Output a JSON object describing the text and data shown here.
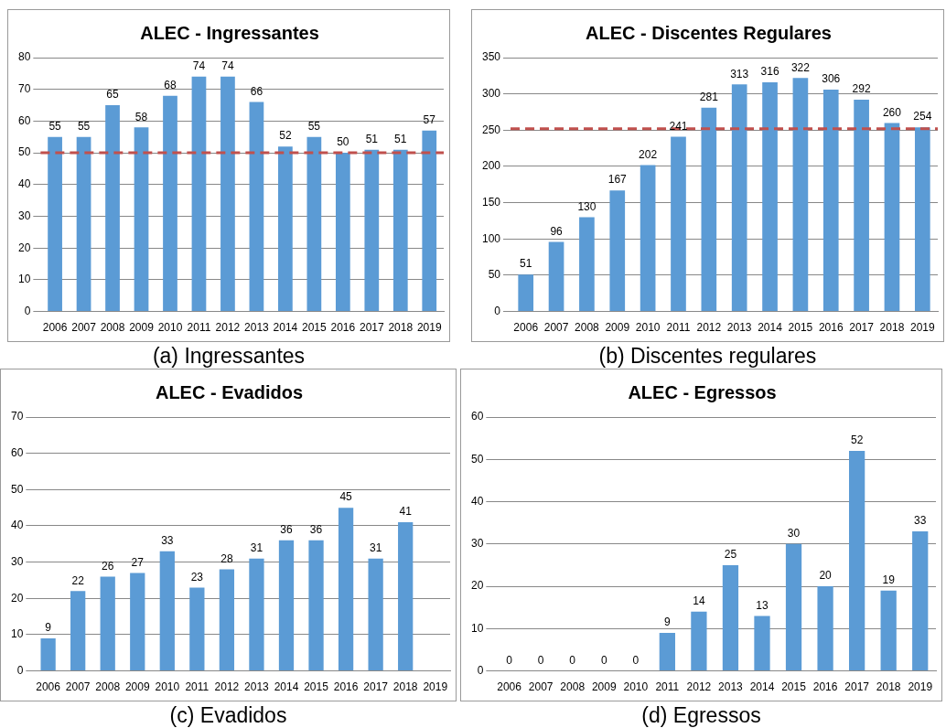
{
  "chart_data": [
    {
      "type": "bar",
      "title": "ALEC - Ingressantes",
      "categories": [
        "2006",
        "2007",
        "2008",
        "2009",
        "2010",
        "2011",
        "2012",
        "2013",
        "2014",
        "2015",
        "2016",
        "2017",
        "2018",
        "2019"
      ],
      "values": [
        55,
        55,
        65,
        58,
        68,
        74,
        74,
        66,
        52,
        55,
        50,
        51,
        51,
        57
      ],
      "color": "#5b9bd5",
      "ylim": [
        0,
        80
      ],
      "yticks": [
        0,
        10,
        20,
        30,
        40,
        50,
        60,
        70,
        80
      ],
      "grid": "y",
      "data_labels": true,
      "ref_lines": [
        {
          "axis": "y",
          "value": 50,
          "label": null,
          "color": "#c0504d",
          "line_style": "dashed"
        }
      ],
      "annotations": [
        "(a) Ingressantes"
      ]
    },
    {
      "type": "bar",
      "title": "ALEC - Discentes Regulares",
      "categories": [
        "2006",
        "2007",
        "2008",
        "2009",
        "2010",
        "2011",
        "2012",
        "2013",
        "2014",
        "2015",
        "2016",
        "2017",
        "2018",
        "2019"
      ],
      "values": [
        51,
        96,
        130,
        167,
        202,
        241,
        281,
        313,
        316,
        322,
        306,
        292,
        260,
        254
      ],
      "color": "#5b9bd5",
      "ylim": [
        0,
        350
      ],
      "yticks": [
        0,
        50,
        100,
        150,
        200,
        250,
        300,
        350
      ],
      "grid": "y",
      "data_labels": true,
      "ref_lines": [
        {
          "axis": "y",
          "value": 252,
          "label": null,
          "color": "#c0504d",
          "line_style": "dashed"
        }
      ],
      "annotations": [
        "(b) Discentes regulares"
      ]
    },
    {
      "type": "bar",
      "title": "ALEC - Evadidos",
      "categories": [
        "2006",
        "2007",
        "2008",
        "2009",
        "2010",
        "2011",
        "2012",
        "2013",
        "2014",
        "2015",
        "2016",
        "2017",
        "2018",
        "2019"
      ],
      "values": [
        9,
        22,
        26,
        27,
        33,
        23,
        28,
        31,
        36,
        36,
        45,
        31,
        41,
        null
      ],
      "color": "#5b9bd5",
      "ylim": [
        0,
        70
      ],
      "yticks": [
        0,
        10,
        20,
        30,
        40,
        50,
        60,
        70
      ],
      "grid": "y",
      "data_labels": true,
      "annotations": [
        "(c) Evadidos"
      ]
    },
    {
      "type": "bar",
      "title": "ALEC - Egressos",
      "categories": [
        "2006",
        "2007",
        "2008",
        "2009",
        "2010",
        "2011",
        "2012",
        "2013",
        "2014",
        "2015",
        "2016",
        "2017",
        "2018",
        "2019"
      ],
      "values": [
        0,
        0,
        0,
        0,
        0,
        9,
        14,
        25,
        13,
        30,
        20,
        52,
        19,
        33
      ],
      "color": "#5b9bd5",
      "ylim": [
        0,
        60
      ],
      "yticks": [
        0,
        10,
        20,
        30,
        40,
        50,
        60
      ],
      "grid": "y",
      "data_labels": true,
      "annotations": [
        "(d) Egressos"
      ]
    }
  ]
}
